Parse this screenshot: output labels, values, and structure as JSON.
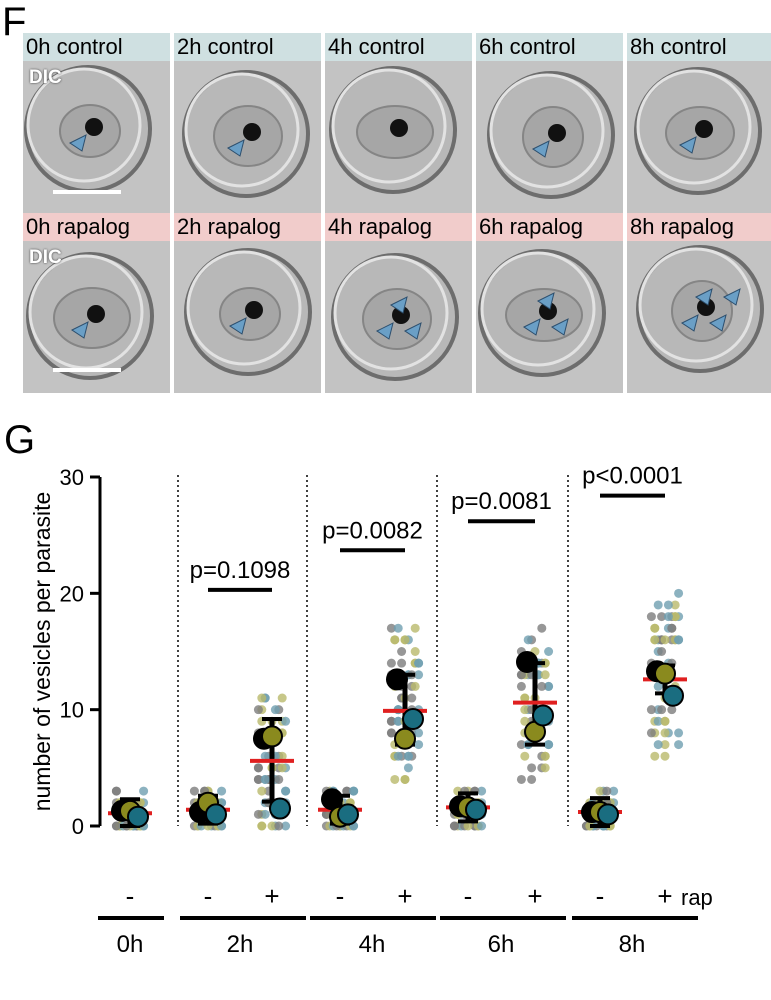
{
  "panel_f": {
    "letter": "F",
    "dic_label": "DIC",
    "control_labels": [
      "0h control",
      "2h control",
      "4h control",
      "6h control",
      "8h control"
    ],
    "rapalog_labels": [
      "0h rapalog",
      "2h rapalog",
      "4h rapalog",
      "6h rapalog",
      "8h rapalog"
    ],
    "colors": {
      "control_caption": "#cfe0e1",
      "rapalog_caption": "#f1cccb",
      "arrowhead": "#6a9fc6"
    }
  },
  "panel_g": {
    "letter": "G",
    "bottom_label_rap": "rap"
  },
  "chart_data": {
    "type": "scatter",
    "ylabel": "number of vesicles per parasite",
    "ylim": [
      0,
      30
    ],
    "yticks": [
      0,
      10,
      20,
      30
    ],
    "groups": [
      {
        "time": "0h",
        "label": "-",
        "mean": 1.1,
        "sd_low": null,
        "sd_high": null,
        "replicate_means": [
          1.3,
          1.3,
          0.8
        ]
      },
      {
        "time": "2h",
        "label": "-",
        "mean": 1.4,
        "sd_low": null,
        "sd_high": null,
        "replicate_means": [
          1.2,
          2.0,
          1.0
        ]
      },
      {
        "time": "2h",
        "label": "+",
        "mean": 5.6,
        "sd_low": 2.1,
        "sd_high": 9.2,
        "replicate_means": [
          7.5,
          7.7,
          1.5
        ]
      },
      {
        "time": "4h",
        "label": "-",
        "mean": 1.4,
        "sd_low": null,
        "sd_high": null,
        "replicate_means": [
          2.3,
          0.8,
          1.0
        ]
      },
      {
        "time": "4h",
        "label": "+",
        "mean": 9.9,
        "sd_low": 7.0,
        "sd_high": 13.0,
        "replicate_means": [
          12.6,
          7.5,
          9.2
        ]
      },
      {
        "time": "6h",
        "label": "-",
        "mean": 1.6,
        "sd_low": null,
        "sd_high": null,
        "replicate_means": [
          1.7,
          1.6,
          1.4
        ]
      },
      {
        "time": "6h",
        "label": "+",
        "mean": 10.6,
        "sd_low": 7.0,
        "sd_high": 14.0,
        "replicate_means": [
          14.1,
          8.1,
          9.5
        ]
      },
      {
        "time": "8h",
        "label": "-",
        "mean": 1.2,
        "sd_low": null,
        "sd_high": null,
        "replicate_means": [
          1.2,
          1.2,
          1.0
        ]
      },
      {
        "time": "8h",
        "label": "+",
        "mean": 12.6,
        "sd_low": 11.4,
        "sd_high": 13.8,
        "replicate_means": [
          13.3,
          13.1,
          11.2
        ]
      }
    ],
    "replicate_colors": [
      "#000000",
      "#8a8a1e",
      "#1a6d80"
    ],
    "dot_colors": [
      "#7d7d7d",
      "#b9b96b",
      "#6f9fb0"
    ],
    "mean_color": "#e02020",
    "comparisons": [
      {
        "time": "2h",
        "label": "p=0.1098",
        "y": 20.3
      },
      {
        "time": "4h",
        "label": "p=0.0082",
        "y": 23.7
      },
      {
        "time": "6h",
        "label": "p=0.0081",
        "y": 26.2
      },
      {
        "time": "8h",
        "label": "p<0.0001",
        "y": 28.4
      }
    ],
    "time_labels": [
      "0h",
      "2h",
      "4h",
      "6h",
      "8h"
    ]
  }
}
